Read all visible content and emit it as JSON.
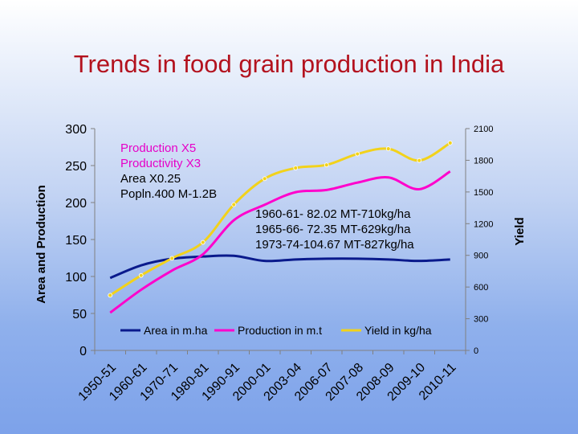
{
  "title": "Trends in food grain production in India",
  "chart_data": {
    "type": "line",
    "categories": [
      "1950-51",
      "1960-61",
      "1970-71",
      "1980-81",
      "1990-91",
      "2000-01",
      "2003-04",
      "2006-07",
      "2007-08",
      "2008-09",
      "2009-10",
      "2010-11"
    ],
    "y_left": {
      "label": "Area and Production",
      "min": 0,
      "max": 300,
      "ticks": [
        0,
        50,
        100,
        150,
        200,
        250,
        300
      ]
    },
    "y_right": {
      "label": "Yield",
      "min": 0,
      "max": 2100,
      "ticks": [
        0,
        300,
        600,
        900,
        1200,
        1500,
        1800,
        2100
      ]
    },
    "grid": false,
    "legend_position": "bottom",
    "series": [
      {
        "name": "Area in m.ha",
        "axis": "left",
        "color": "#0a1a8c",
        "markers": false,
        "values": [
          98,
          115,
          124,
          127,
          128,
          121,
          123,
          124,
          124,
          123,
          121,
          123
        ]
      },
      {
        "name": "Production in m.t",
        "axis": "left",
        "color": "#ff00cc",
        "markers": false,
        "values": [
          51,
          82,
          108,
          130,
          176,
          197,
          214,
          217,
          227,
          234,
          218,
          242
        ]
      },
      {
        "name": "Yield in kg/ha",
        "axis": "right",
        "color": "#f2d21b",
        "markers": true,
        "values": [
          522,
          710,
          872,
          1023,
          1380,
          1626,
          1727,
          1756,
          1860,
          1909,
          1798,
          1964
        ]
      }
    ]
  },
  "annotations": {
    "left": {
      "production": "Production  X5",
      "productivity": "Productivity X3",
      "area": "Area          X0.25",
      "population": "Popln.400 M-1.2B"
    },
    "right": {
      "line1": "1960-61-  82.02 MT-710kg/ha",
      "line2": "1965-66-  72.35 MT-629kg/ha",
      "line3": "1973-74-104.67 MT-827kg/ha"
    }
  }
}
